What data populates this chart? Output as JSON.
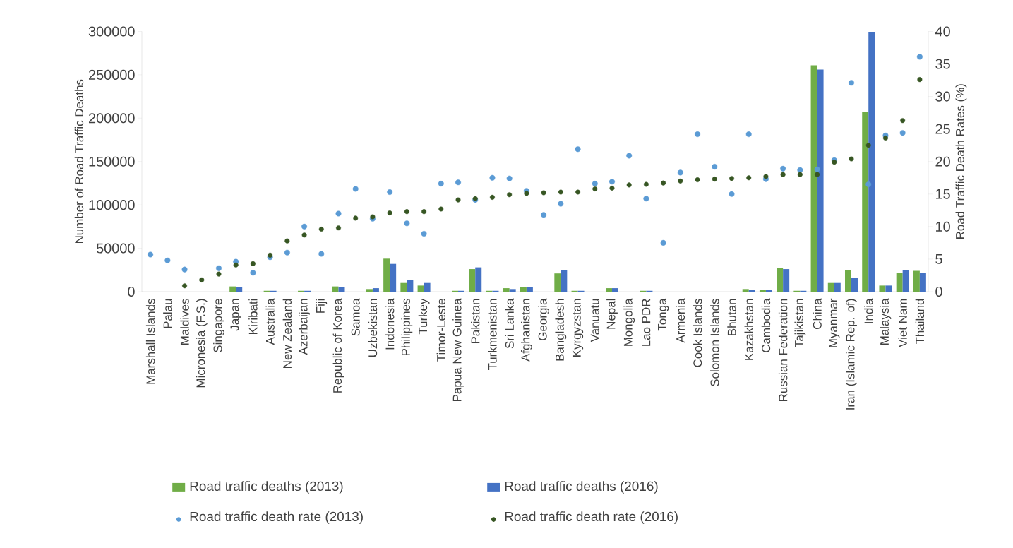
{
  "chart_data": {
    "type": "bar",
    "ylabel": "Number of Road Traffic Deaths",
    "y2label": "Road Traffic Death Rates (%)",
    "categories": [
      "Marshall Islands",
      "Palau",
      "Maldives",
      "Micronesia (F.S.)",
      "Singapore",
      "Japan",
      "Kiribati",
      "Australia",
      "New Zealand",
      "Azerbaijan",
      "Fiji",
      "Republic of Korea",
      "Samoa",
      "Uzbekistan",
      "Indonesia",
      "Philippines",
      "Turkey",
      "Timor-Leste",
      "Papua New Guinea",
      "Pakistan",
      "Turkmenistan",
      "Sri Lanka",
      "Afghanistan",
      "Georgia",
      "Bangladesh",
      "Kyrgyzstan",
      "Vanuatu",
      "Nepal",
      "Mongolia",
      "Lao PDR",
      "Tonga",
      "Armenia",
      "Cook Islands",
      "Solomon Islands",
      "Bhutan",
      "Kazakhstan",
      "Cambodia",
      "Russian Federation",
      "Tajikistan",
      "China",
      "Myanmar",
      "Iran (Islamic Rep. of)",
      "India",
      "Malaysia",
      "Viet Nam",
      "Thailand"
    ],
    "series": [
      {
        "name": "Road traffic deaths (2013)",
        "color": "#70ad47",
        "values": [
          0,
          0,
          0,
          0,
          0,
          6000,
          0,
          1000,
          0,
          1000,
          0,
          6000,
          0,
          3000,
          38000,
          10000,
          7000,
          0,
          1000,
          26000,
          1000,
          4000,
          5000,
          0,
          21000,
          1000,
          0,
          4000,
          0,
          1000,
          0,
          0,
          0,
          0,
          0,
          3000,
          2000,
          27000,
          1000,
          261000,
          10000,
          25000,
          207000,
          7000,
          22000,
          24000
        ]
      },
      {
        "name": "Road traffic deaths (2016)",
        "color": "#4472c4",
        "values": [
          0,
          0,
          0,
          0,
          0,
          5000,
          0,
          1000,
          0,
          1000,
          0,
          5000,
          0,
          4000,
          32000,
          13000,
          10000,
          0,
          1000,
          28000,
          1000,
          3000,
          5000,
          0,
          25000,
          1000,
          0,
          4000,
          0,
          1000,
          0,
          0,
          0,
          0,
          0,
          2000,
          2000,
          26000,
          1000,
          256000,
          10000,
          16000,
          299000,
          7000,
          25000,
          22000
        ]
      },
      {
        "name": "Road traffic death rate (2013)",
        "type": "scatter",
        "axis": "y2",
        "color": "#5b9bd5",
        "values": [
          5.7,
          4.8,
          3.4,
          null,
          3.6,
          4.6,
          2.9,
          5.3,
          6.0,
          10.0,
          5.8,
          12.0,
          15.8,
          11.2,
          15.3,
          10.5,
          8.9,
          16.6,
          16.8,
          14.1,
          17.5,
          17.4,
          15.5,
          11.8,
          13.5,
          21.9,
          16.6,
          16.9,
          20.9,
          14.3,
          7.5,
          18.3,
          24.2,
          19.2,
          15.0,
          24.2,
          17.3,
          18.9,
          18.7,
          18.8,
          20.2,
          32.1,
          16.5,
          24.0,
          24.4,
          36.1
        ]
      },
      {
        "name": "Road traffic death rate (2016)",
        "type": "scatter",
        "axis": "y2",
        "color": "#375623",
        "values": [
          null,
          null,
          0.9,
          1.8,
          2.7,
          4.1,
          4.3,
          5.6,
          7.8,
          8.7,
          9.6,
          9.8,
          11.3,
          11.5,
          12.1,
          12.3,
          12.3,
          12.7,
          14.1,
          14.3,
          14.5,
          14.9,
          15.1,
          15.2,
          15.3,
          15.3,
          15.8,
          15.9,
          16.4,
          16.5,
          16.7,
          17.0,
          17.2,
          17.3,
          17.4,
          17.5,
          17.7,
          18.0,
          18.0,
          18.0,
          19.9,
          20.4,
          22.5,
          23.6,
          26.3,
          32.6
        ]
      }
    ],
    "ylim": [
      0,
      300000
    ],
    "yticks": [
      0,
      50000,
      100000,
      150000,
      200000,
      250000,
      300000
    ],
    "y2lim": [
      0,
      40
    ],
    "y2ticks": [
      0,
      5,
      10,
      15,
      20,
      25,
      30,
      35,
      40
    ],
    "legend": "bottom",
    "marker": "circle",
    "grid": false
  }
}
